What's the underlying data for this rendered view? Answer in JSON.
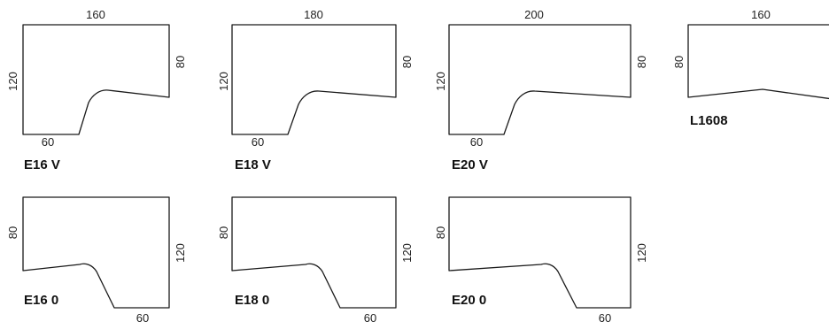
{
  "colors": {
    "outline": "#1a1a1a",
    "text": "#222222",
    "background": "#ffffff"
  },
  "desks": [
    {
      "code": "E16 V",
      "top": "160",
      "left": "120",
      "right": "80",
      "cutout": "60"
    },
    {
      "code": "E18  V",
      "top": "180",
      "left": "120",
      "right": "80",
      "cutout": "60"
    },
    {
      "code": "E20 V",
      "top": "200",
      "left": "120",
      "right": "80",
      "cutout": "60"
    },
    {
      "code": "L1608",
      "top": "160",
      "left": "80"
    },
    {
      "code": "E16 0",
      "left": "80",
      "right": "120",
      "cutout": "60"
    },
    {
      "code": "E18  0",
      "left": "80",
      "right": "120",
      "cutout": "60"
    },
    {
      "code": "E20 0",
      "left": "80",
      "right": "120",
      "cutout": "60"
    }
  ]
}
